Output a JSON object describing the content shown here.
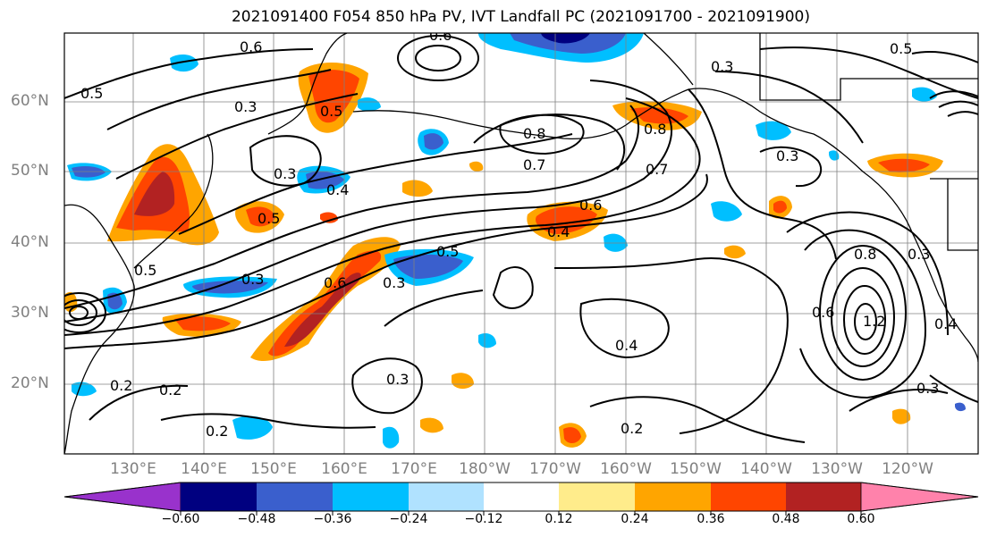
{
  "title": "2021091400 F054 850 hPa PV, IVT Landfall PC (2021091700 - 2021091900)",
  "lat_labels": [
    "60°N",
    "50°N",
    "40°N",
    "30°N",
    "20°N"
  ],
  "lon_labels": [
    "130°E",
    "140°E",
    "150°E",
    "160°E",
    "170°E",
    "180°W",
    "170°W",
    "160°W",
    "150°W",
    "140°W",
    "130°W",
    "120°W"
  ],
  "contour_labels": [
    "0.6",
    "0.6",
    "0.3",
    "0.5",
    "0.3",
    "0.4",
    "0.5",
    "0.8",
    "0.7",
    "0.8",
    "0.7",
    "0.6",
    "0.5",
    "0.6",
    "0.3",
    "0.5",
    "0.4",
    "0.4",
    "0.3",
    "0.2",
    "0.2",
    "0.2",
    "0.2",
    "0.8",
    "0.3",
    "0.6",
    "1.2",
    "0.3",
    "0.3",
    "0.4",
    "0.3",
    "0.5",
    "0.3",
    "0.5"
  ],
  "colorbar": {
    "ticks": [
      "−0.60",
      "−0.48",
      "−0.36",
      "−0.24",
      "−0.12",
      "0.12",
      "0.24",
      "0.36",
      "0.48",
      "0.60"
    ],
    "colors": {
      "under": "#9932cc",
      "b1": "#000080",
      "b2": "#3a5fcd",
      "b3": "#00bfff",
      "b4": "#b0e2ff",
      "b5": "#ffffff",
      "b6": "#ffffff",
      "b7": "#ffec8b",
      "b8": "#ffa500",
      "b9": "#ff4500",
      "b10": "#b22222",
      "over": "#ff82ab"
    }
  }
}
